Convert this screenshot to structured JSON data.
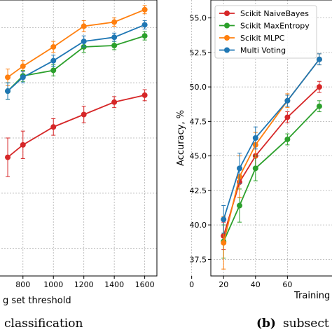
{
  "colors": {
    "naive_bayes": "#d62728",
    "max_entropy": "#2ca02c",
    "mlpc": "#ff7f0e",
    "multi_voting": "#1f77b4"
  },
  "captions": {
    "left": "classification",
    "right_label": "(b)",
    "right_text": "subsect"
  },
  "chart_data": [
    {
      "type": "line",
      "title": "",
      "xlabel": "g set threshold",
      "ylabel": "",
      "xlim": [
        640,
        1680
      ],
      "ylim": [
        0,
        100
      ],
      "grid": true,
      "x_ticks": [
        "800",
        "1000",
        "1200",
        "1400",
        "1600"
      ],
      "x": [
        700,
        800,
        1000,
        1200,
        1400,
        1600
      ],
      "series": [
        {
          "key": "naive_bayes",
          "values": [
            43,
            47.5,
            54,
            58.5,
            63,
            65.5
          ],
          "err": [
            7,
            5,
            3,
            3,
            2,
            2
          ]
        },
        {
          "key": "max_entropy",
          "values": [
            67,
            72.5,
            74.5,
            83,
            83.5,
            87
          ],
          "err": [
            3,
            2,
            2,
            2,
            1.5,
            1.5
          ]
        },
        {
          "key": "mlpc",
          "values": [
            72,
            76,
            83,
            90.5,
            92,
            96.5
          ],
          "err": [
            3,
            2,
            2,
            2,
            1.5,
            1.5
          ]
        },
        {
          "key": "multi_voting",
          "values": [
            67,
            72,
            78,
            85,
            86.5,
            91
          ],
          "err": [
            3,
            2,
            2,
            2,
            1.5,
            1.5
          ]
        }
      ]
    },
    {
      "type": "line",
      "title": "",
      "xlabel": "Training",
      "ylabel": "Accuracy, %",
      "xlim": [
        12,
        91
      ],
      "ylim": [
        36.3,
        56.3
      ],
      "grid": true,
      "x_ticks": [
        "0",
        "20",
        "40",
        "60"
      ],
      "y_ticks": [
        "37.5",
        "40.0",
        "42.5",
        "45.0",
        "47.5",
        "50.0",
        "52.5",
        "55.0"
      ],
      "legend_position": "top-left",
      "x": [
        20,
        30,
        40,
        60,
        80
      ],
      "series": [
        {
          "key": "naive_bayes",
          "name": "Scikit NaiveBayes",
          "values": [
            39.2,
            43.1,
            45.0,
            47.8,
            50.0
          ],
          "err": [
            1.0,
            1.1,
            0.8,
            0.4,
            0.4
          ]
        },
        {
          "key": "max_entropy",
          "name": "Scikit MaxEntropy",
          "values": [
            38.8,
            41.4,
            44.1,
            46.2,
            48.6
          ],
          "err": [
            1.2,
            1.2,
            0.9,
            0.4,
            0.4
          ]
        },
        {
          "key": "mlpc",
          "name": "Scikit MLPC",
          "values": [
            38.7,
            43.5,
            45.8,
            49.0,
            52.0
          ],
          "err": [
            1.9,
            1.5,
            0.9,
            0.5,
            0.4
          ]
        },
        {
          "key": "multi_voting",
          "name": "Multi Voting",
          "values": [
            40.4,
            44.1,
            46.3,
            49.0,
            52.0
          ],
          "err": [
            1.0,
            1.1,
            0.8,
            0.4,
            0.4
          ]
        }
      ]
    }
  ]
}
